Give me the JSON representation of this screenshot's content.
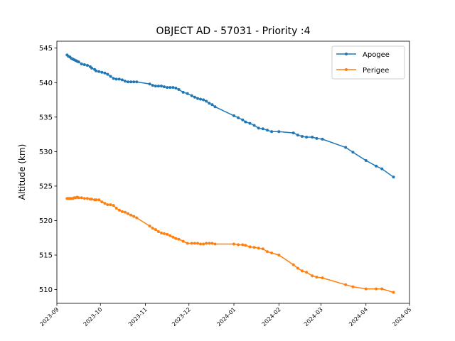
{
  "chart_data": {
    "type": "line",
    "title": "OBJECT AD - 57031 - Priority :4",
    "xlabel": "",
    "ylabel": "Altitude (km)",
    "x_type": "date",
    "xlim": [
      "2023-09-01",
      "2024-05-01"
    ],
    "ylim": [
      508.0,
      546.0
    ],
    "x_ticks": [
      "2023-09",
      "2023-10",
      "2023-11",
      "2023-12",
      "2024-01",
      "2024-02",
      "2024-03",
      "2024-04",
      "2024-05"
    ],
    "y_ticks": [
      510,
      515,
      520,
      525,
      530,
      535,
      540,
      545
    ],
    "grid": false,
    "legend_position": "top-right",
    "series": [
      {
        "name": "Apogee",
        "color": "#1f77b4",
        "marker": "circle",
        "points": [
          [
            "2023-09-08",
            544.0
          ],
          [
            "2023-09-09",
            543.8
          ],
          [
            "2023-09-10",
            543.7
          ],
          [
            "2023-09-11",
            543.5
          ],
          [
            "2023-09-12",
            543.4
          ],
          [
            "2023-09-13",
            543.3
          ],
          [
            "2023-09-14",
            543.2
          ],
          [
            "2023-09-15",
            543.1
          ],
          [
            "2023-09-16",
            543.0
          ],
          [
            "2023-09-18",
            542.7
          ],
          [
            "2023-09-20",
            542.6
          ],
          [
            "2023-09-22",
            542.5
          ],
          [
            "2023-09-24",
            542.3
          ],
          [
            "2023-09-25",
            542.1
          ],
          [
            "2023-09-27",
            541.9
          ],
          [
            "2023-09-28",
            541.7
          ],
          [
            "2023-09-30",
            541.6
          ],
          [
            "2023-10-02",
            541.5
          ],
          [
            "2023-10-04",
            541.4
          ],
          [
            "2023-10-06",
            541.2
          ],
          [
            "2023-10-08",
            540.9
          ],
          [
            "2023-10-10",
            540.6
          ],
          [
            "2023-10-12",
            540.5
          ],
          [
            "2023-10-14",
            540.5
          ],
          [
            "2023-10-16",
            540.4
          ],
          [
            "2023-10-18",
            540.2
          ],
          [
            "2023-10-20",
            540.1
          ],
          [
            "2023-10-22",
            540.1
          ],
          [
            "2023-10-24",
            540.1
          ],
          [
            "2023-10-26",
            540.1
          ],
          [
            "2023-11-04",
            539.8
          ],
          [
            "2023-11-06",
            539.6
          ],
          [
            "2023-11-08",
            539.5
          ],
          [
            "2023-11-10",
            539.5
          ],
          [
            "2023-11-12",
            539.5
          ],
          [
            "2023-11-14",
            539.4
          ],
          [
            "2023-11-16",
            539.3
          ],
          [
            "2023-11-18",
            539.3
          ],
          [
            "2023-11-20",
            539.3
          ],
          [
            "2023-11-22",
            539.2
          ],
          [
            "2023-11-24",
            539.0
          ],
          [
            "2023-11-27",
            538.6
          ],
          [
            "2023-11-30",
            538.4
          ],
          [
            "2023-12-03",
            538.1
          ],
          [
            "2023-12-05",
            537.9
          ],
          [
            "2023-12-07",
            537.7
          ],
          [
            "2023-12-09",
            537.6
          ],
          [
            "2023-12-11",
            537.5
          ],
          [
            "2023-12-13",
            537.3
          ],
          [
            "2023-12-15",
            537.0
          ],
          [
            "2023-12-17",
            536.8
          ],
          [
            "2023-12-19",
            536.5
          ],
          [
            "2024-01-01",
            535.2
          ],
          [
            "2024-01-04",
            534.9
          ],
          [
            "2024-01-07",
            534.6
          ],
          [
            "2024-01-09",
            534.3
          ],
          [
            "2024-01-12",
            534.1
          ],
          [
            "2024-01-15",
            533.8
          ],
          [
            "2024-01-18",
            533.4
          ],
          [
            "2024-01-21",
            533.3
          ],
          [
            "2024-01-24",
            533.1
          ],
          [
            "2024-01-27",
            532.9
          ],
          [
            "2024-02-01",
            532.9
          ],
          [
            "2024-02-11",
            532.7
          ],
          [
            "2024-02-14",
            532.4
          ],
          [
            "2024-02-17",
            532.2
          ],
          [
            "2024-02-20",
            532.1
          ],
          [
            "2024-02-24",
            532.1
          ],
          [
            "2024-02-27",
            531.9
          ],
          [
            "2024-03-02",
            531.8
          ],
          [
            "2024-03-18",
            530.6
          ],
          [
            "2024-03-23",
            529.9
          ],
          [
            "2024-04-01",
            528.7
          ],
          [
            "2024-04-08",
            527.9
          ],
          [
            "2024-04-12",
            527.5
          ],
          [
            "2024-04-20",
            526.3
          ]
        ]
      },
      {
        "name": "Perigee",
        "color": "#ff7f0e",
        "marker": "circle",
        "points": [
          [
            "2023-09-08",
            523.2
          ],
          [
            "2023-09-09",
            523.2
          ],
          [
            "2023-09-10",
            523.2
          ],
          [
            "2023-09-11",
            523.2
          ],
          [
            "2023-09-12",
            523.2
          ],
          [
            "2023-09-13",
            523.3
          ],
          [
            "2023-09-14",
            523.3
          ],
          [
            "2023-09-15",
            523.4
          ],
          [
            "2023-09-16",
            523.3
          ],
          [
            "2023-09-18",
            523.3
          ],
          [
            "2023-09-20",
            523.2
          ],
          [
            "2023-09-22",
            523.2
          ],
          [
            "2023-09-24",
            523.1
          ],
          [
            "2023-09-25",
            523.1
          ],
          [
            "2023-09-27",
            523.0
          ],
          [
            "2023-09-28",
            523.0
          ],
          [
            "2023-09-30",
            523.0
          ],
          [
            "2023-10-02",
            522.7
          ],
          [
            "2023-10-04",
            522.5
          ],
          [
            "2023-10-06",
            522.3
          ],
          [
            "2023-10-08",
            522.3
          ],
          [
            "2023-10-10",
            522.2
          ],
          [
            "2023-10-12",
            521.8
          ],
          [
            "2023-10-14",
            521.5
          ],
          [
            "2023-10-16",
            521.3
          ],
          [
            "2023-10-18",
            521.2
          ],
          [
            "2023-10-20",
            521.0
          ],
          [
            "2023-10-22",
            520.8
          ],
          [
            "2023-10-24",
            520.6
          ],
          [
            "2023-10-26",
            520.4
          ],
          [
            "2023-11-04",
            519.2
          ],
          [
            "2023-11-06",
            518.9
          ],
          [
            "2023-11-08",
            518.7
          ],
          [
            "2023-11-10",
            518.4
          ],
          [
            "2023-11-12",
            518.2
          ],
          [
            "2023-11-14",
            518.1
          ],
          [
            "2023-11-16",
            518.0
          ],
          [
            "2023-11-18",
            517.8
          ],
          [
            "2023-11-20",
            517.6
          ],
          [
            "2023-11-22",
            517.4
          ],
          [
            "2023-11-24",
            517.3
          ],
          [
            "2023-11-27",
            517.0
          ],
          [
            "2023-11-30",
            516.7
          ],
          [
            "2023-12-03",
            516.7
          ],
          [
            "2023-12-05",
            516.7
          ],
          [
            "2023-12-07",
            516.7
          ],
          [
            "2023-12-09",
            516.6
          ],
          [
            "2023-12-11",
            516.6
          ],
          [
            "2023-12-13",
            516.7
          ],
          [
            "2023-12-15",
            516.7
          ],
          [
            "2023-12-17",
            516.7
          ],
          [
            "2023-12-19",
            516.6
          ],
          [
            "2024-01-01",
            516.6
          ],
          [
            "2024-01-04",
            516.5
          ],
          [
            "2024-01-07",
            516.5
          ],
          [
            "2024-01-09",
            516.4
          ],
          [
            "2024-01-12",
            516.2
          ],
          [
            "2024-01-15",
            516.1
          ],
          [
            "2024-01-18",
            516.0
          ],
          [
            "2024-01-21",
            515.9
          ],
          [
            "2024-01-24",
            515.5
          ],
          [
            "2024-01-27",
            515.3
          ],
          [
            "2024-02-01",
            515.0
          ],
          [
            "2024-02-11",
            513.6
          ],
          [
            "2024-02-14",
            513.1
          ],
          [
            "2024-02-17",
            512.7
          ],
          [
            "2024-02-20",
            512.5
          ],
          [
            "2024-02-24",
            512.0
          ],
          [
            "2024-02-27",
            511.8
          ],
          [
            "2024-03-02",
            511.7
          ],
          [
            "2024-03-18",
            510.7
          ],
          [
            "2024-03-23",
            510.4
          ],
          [
            "2024-04-01",
            510.1
          ],
          [
            "2024-04-08",
            510.1
          ],
          [
            "2024-04-12",
            510.1
          ],
          [
            "2024-04-20",
            509.6
          ]
        ]
      }
    ]
  }
}
